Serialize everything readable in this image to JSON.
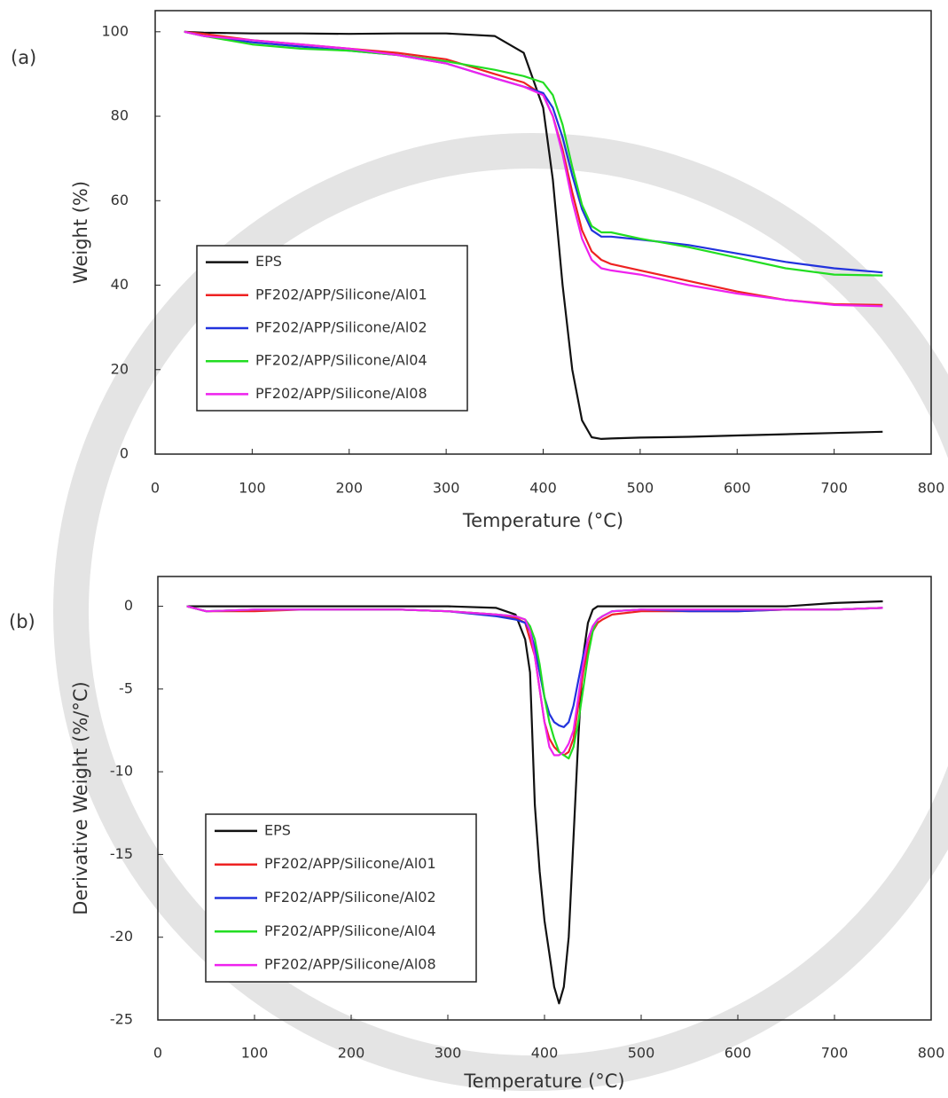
{
  "chart_data": [
    {
      "type": "line",
      "label": "(a)",
      "x_label": "Temperature (°C)",
      "y_label": "Weight (%)",
      "xlim": [
        0,
        800
      ],
      "ylim": [
        0,
        105
      ],
      "xticks": [
        0,
        100,
        200,
        300,
        400,
        500,
        600,
        700,
        800
      ],
      "yticks": [
        0,
        20,
        40,
        60,
        80,
        100
      ],
      "legend": "lower left",
      "x": [
        30,
        50,
        100,
        150,
        200,
        250,
        300,
        350,
        380,
        400,
        410,
        420,
        430,
        440,
        450,
        460,
        470,
        500,
        550,
        600,
        650,
        700,
        750
      ],
      "series": [
        {
          "name": "EPS",
          "color": "#111111",
          "values": [
            100,
            99.8,
            99.6,
            99.6,
            99.5,
            99.6,
            99.6,
            99,
            95,
            82,
            65,
            40,
            20,
            8,
            4,
            3.6,
            3.7,
            3.9,
            4.1,
            4.4,
            4.7,
            5,
            5.3
          ]
        },
        {
          "name": "PF202/APP/Silicone/Al01",
          "color": "#ee2222",
          "values": [
            100,
            99.5,
            98,
            97,
            96,
            95,
            93.5,
            90,
            88,
            85,
            80,
            72,
            62,
            53,
            48,
            46,
            45,
            43.5,
            41,
            38.5,
            36.5,
            35.5,
            35.3
          ]
        },
        {
          "name": "PF202/APP/Silicone/Al02",
          "color": "#2233dd",
          "values": [
            100,
            99,
            97.5,
            96.5,
            95.5,
            94.5,
            92.5,
            89,
            87,
            85.5,
            82,
            75,
            66,
            58,
            53,
            51.5,
            51.5,
            50.8,
            49.5,
            47.5,
            45.5,
            44,
            43
          ]
        },
        {
          "name": "PF202/APP/Silicone/Al04",
          "color": "#22dd22",
          "values": [
            100,
            99,
            97,
            96,
            95.5,
            94.5,
            93,
            91,
            89.5,
            88,
            85,
            78,
            68,
            59,
            54,
            52.5,
            52.5,
            51,
            49,
            46.5,
            44,
            42.5,
            42.3
          ]
        },
        {
          "name": "PF202/APP/Silicone/Al08",
          "color": "#ee22ee",
          "values": [
            100,
            99,
            98,
            97,
            96,
            94.5,
            92.5,
            89,
            87,
            85,
            80,
            71,
            60,
            51,
            46,
            44,
            43.5,
            42.5,
            40,
            38,
            36.5,
            35.3,
            35
          ]
        }
      ]
    },
    {
      "type": "line",
      "label": "(b)",
      "x_label": "Temperature (°C)",
      "y_label": "Derivative Weight (%/°C)",
      "xlim": [
        0,
        800
      ],
      "ylim": [
        -25,
        1.8
      ],
      "xticks": [
        0,
        100,
        200,
        300,
        400,
        500,
        600,
        700,
        800
      ],
      "yticks": [
        -25,
        -20,
        -15,
        -10,
        -5,
        0
      ],
      "legend": "lower left",
      "x": [
        30,
        50,
        100,
        150,
        200,
        250,
        300,
        350,
        370,
        380,
        385,
        390,
        395,
        400,
        405,
        410,
        415,
        420,
        425,
        430,
        435,
        440,
        445,
        450,
        455,
        460,
        470,
        500,
        550,
        600,
        650,
        700,
        750
      ],
      "series": [
        {
          "name": "EPS",
          "color": "#111111",
          "values": [
            0,
            0,
            0,
            0,
            0,
            0,
            0,
            -0.1,
            -0.5,
            -2,
            -4,
            -12,
            -16,
            -19,
            -21,
            -23,
            -24,
            -23,
            -20,
            -14,
            -8,
            -3,
            -1,
            -0.2,
            0,
            0,
            0,
            0,
            0,
            0,
            0,
            0.2,
            0.3
          ]
        },
        {
          "name": "PF202/APP/Silicone/Al01",
          "color": "#ee2222",
          "values": [
            0,
            -0.3,
            -0.3,
            -0.2,
            -0.2,
            -0.2,
            -0.3,
            -0.5,
            -0.7,
            -1,
            -2,
            -3,
            -5,
            -7,
            -8,
            -8.5,
            -8.8,
            -9,
            -8.8,
            -8,
            -6,
            -4,
            -2.5,
            -1.5,
            -1,
            -0.8,
            -0.5,
            -0.3,
            -0.3,
            -0.3,
            -0.2,
            -0.2,
            -0.1
          ]
        },
        {
          "name": "PF202/APP/Silicone/Al02",
          "color": "#2233dd",
          "values": [
            0,
            -0.3,
            -0.2,
            -0.2,
            -0.2,
            -0.2,
            -0.3,
            -0.6,
            -0.8,
            -1,
            -1.5,
            -2.5,
            -4,
            -5.5,
            -6.5,
            -7,
            -7.2,
            -7.3,
            -7,
            -6,
            -4.5,
            -3,
            -2,
            -1.2,
            -0.8,
            -0.6,
            -0.3,
            -0.2,
            -0.3,
            -0.3,
            -0.2,
            -0.2,
            -0.1
          ]
        },
        {
          "name": "PF202/APP/Silicone/Al04",
          "color": "#22dd22",
          "values": [
            0,
            -0.3,
            -0.2,
            -0.2,
            -0.2,
            -0.2,
            -0.3,
            -0.5,
            -0.6,
            -0.8,
            -1.2,
            -2,
            -3.5,
            -5.5,
            -7,
            -8,
            -8.8,
            -9,
            -9.2,
            -8.5,
            -7,
            -5,
            -3,
            -1.5,
            -0.8,
            -0.6,
            -0.3,
            -0.2,
            -0.2,
            -0.2,
            -0.2,
            -0.2,
            -0.1
          ]
        },
        {
          "name": "PF202/APP/Silicone/Al08",
          "color": "#ee22ee",
          "values": [
            0,
            -0.3,
            -0.2,
            -0.2,
            -0.2,
            -0.2,
            -0.3,
            -0.5,
            -0.6,
            -0.8,
            -1.5,
            -3,
            -5,
            -7,
            -8.5,
            -9,
            -9,
            -8.8,
            -8.3,
            -7.5,
            -5.5,
            -3.5,
            -2,
            -1.2,
            -0.8,
            -0.6,
            -0.3,
            -0.2,
            -0.2,
            -0.2,
            -0.2,
            -0.2,
            -0.1
          ]
        }
      ]
    }
  ]
}
